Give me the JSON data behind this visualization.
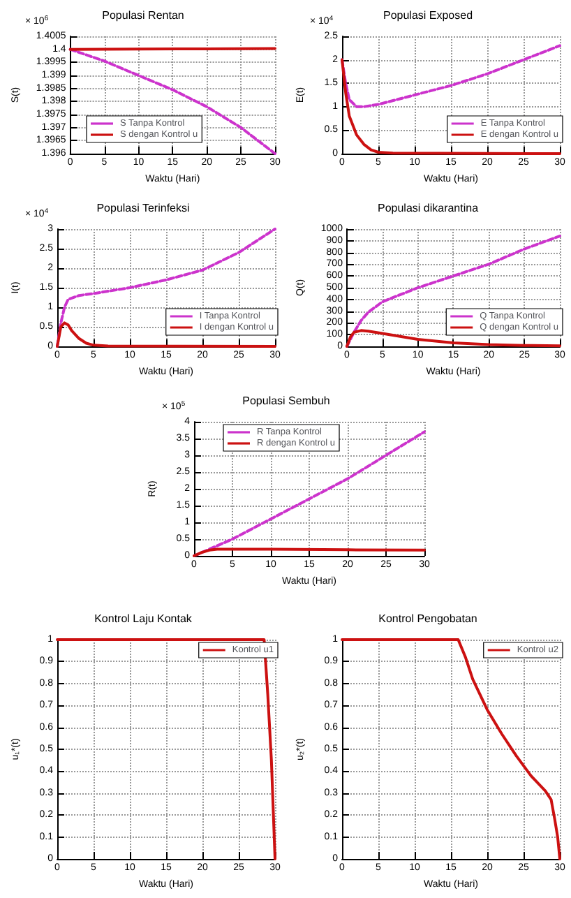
{
  "chart_data": [
    {
      "type": "line",
      "title": "Populasi Rentan",
      "xlabel": "Waktu (Hari)",
      "ylabel": "S(t)",
      "annotations": [
        "× 10$^{6}$"
      ],
      "xlim": [
        0,
        30
      ],
      "xticks": [
        0,
        5,
        10,
        15,
        20,
        25,
        30
      ],
      "ylim": [
        1.396,
        1.4005
      ],
      "yticks": [
        1.396,
        1.3965,
        1.397,
        1.3975,
        1.398,
        1.3985,
        1.399,
        1.3995,
        1.4,
        1.4005
      ],
      "grid": true,
      "legend": "bottom left",
      "marker": "none",
      "series": [
        {
          "name": "S Tanpa Kontrol",
          "color": "#cc33cc",
          "line_style": "dashed",
          "x": [
            0,
            5,
            10,
            15,
            20,
            25,
            30
          ],
          "values": [
            1.4,
            1.39955,
            1.399,
            1.39845,
            1.3978,
            1.397,
            1.396
          ]
        },
        {
          "name": "S dengan Kontrol u",
          "color": "#cc1111",
          "line_style": "solid",
          "x": [
            0,
            10,
            20,
            30
          ],
          "values": [
            1.4,
            1.40001,
            1.40002,
            1.40003
          ]
        }
      ]
    },
    {
      "type": "line",
      "title": "Populasi Exposed",
      "xlabel": "Waktu (Hari)",
      "ylabel": "E(t)",
      "annotations": [
        "× 10$^{4}$"
      ],
      "xlim": [
        0,
        30
      ],
      "xticks": [
        0,
        5,
        10,
        15,
        20,
        25,
        30
      ],
      "ylim": [
        0,
        2.5
      ],
      "yticks": [
        0,
        0.5,
        1,
        1.5,
        2,
        2.5
      ],
      "grid": true,
      "legend": "bottom right",
      "marker": "none",
      "series": [
        {
          "name": "E Tanpa Kontrol",
          "color": "#cc33cc",
          "line_style": "dashed",
          "x": [
            0,
            0.5,
            1,
            2,
            3,
            5,
            10,
            15,
            20,
            25,
            30
          ],
          "values": [
            2.0,
            1.5,
            1.15,
            1.0,
            1.0,
            1.05,
            1.25,
            1.45,
            1.7,
            2.0,
            2.3
          ]
        },
        {
          "name": "E dengan Kontrol u",
          "color": "#cc1111",
          "line_style": "solid",
          "x": [
            0,
            0.5,
            1,
            2,
            3,
            4,
            5,
            7,
            30
          ],
          "values": [
            2.0,
            1.3,
            0.8,
            0.4,
            0.2,
            0.08,
            0.03,
            0.01,
            0
          ]
        }
      ]
    },
    {
      "type": "line",
      "title": "Populasi Terinfeksi",
      "xlabel": "Waktu (Hari)",
      "ylabel": "I(t)",
      "annotations": [
        "× 10$^{4}$"
      ],
      "xlim": [
        0,
        30
      ],
      "xticks": [
        0,
        5,
        10,
        15,
        20,
        25,
        30
      ],
      "ylim": [
        0,
        3
      ],
      "yticks": [
        0,
        0.5,
        1,
        1.5,
        2,
        2.5,
        3
      ],
      "grid": true,
      "legend": "bottom right",
      "marker": "none",
      "series": [
        {
          "name": "I Tanpa Kontrol",
          "color": "#cc33cc",
          "line_style": "dashed",
          "x": [
            0,
            0.5,
            1,
            1.5,
            3,
            5,
            10,
            15,
            20,
            25,
            30
          ],
          "values": [
            0,
            0.6,
            1.0,
            1.2,
            1.3,
            1.35,
            1.5,
            1.7,
            1.95,
            2.4,
            3.0
          ]
        },
        {
          "name": "I dengan Kontrol u",
          "color": "#cc1111",
          "line_style": "solid",
          "x": [
            0,
            0.5,
            1,
            1.5,
            2,
            3,
            4,
            5,
            7,
            30
          ],
          "values": [
            0,
            0.5,
            0.6,
            0.55,
            0.4,
            0.2,
            0.08,
            0.03,
            0.01,
            0
          ]
        }
      ]
    },
    {
      "type": "line",
      "title": "Populasi dikarantina",
      "xlabel": "Waktu (Hari)",
      "ylabel": "Q(t)",
      "xlim": [
        0,
        30
      ],
      "xticks": [
        0,
        5,
        10,
        15,
        20,
        25,
        30
      ],
      "ylim": [
        0,
        1000
      ],
      "yticks": [
        0,
        100,
        200,
        300,
        400,
        500,
        600,
        700,
        800,
        900,
        1000
      ],
      "grid": true,
      "legend": "bottom right",
      "marker": "none",
      "series": [
        {
          "name": "Q Tanpa Kontrol",
          "color": "#cc33cc",
          "line_style": "dashed",
          "x": [
            0,
            1,
            2,
            3,
            5,
            10,
            15,
            20,
            25,
            30
          ],
          "values": [
            0,
            120,
            220,
            290,
            380,
            500,
            600,
            700,
            830,
            940
          ]
        },
        {
          "name": "Q dengan Kontrol u",
          "color": "#cc1111",
          "line_style": "solid",
          "x": [
            0,
            0.5,
            1,
            2,
            3,
            5,
            10,
            15,
            20,
            25,
            30
          ],
          "values": [
            0,
            80,
            120,
            135,
            130,
            110,
            60,
            30,
            15,
            8,
            5
          ]
        }
      ]
    },
    {
      "type": "line",
      "title": "Populasi Sembuh",
      "xlabel": "Waktu (Hari)",
      "ylabel": "R(t)",
      "annotations": [
        "× 10$^{5}$"
      ],
      "xlim": [
        0,
        30
      ],
      "xticks": [
        0,
        5,
        10,
        15,
        20,
        25,
        30
      ],
      "ylim": [
        0,
        4
      ],
      "yticks": [
        0,
        0.5,
        1,
        1.5,
        2,
        2.5,
        3,
        3.5,
        4
      ],
      "grid": true,
      "legend": "top left",
      "marker": "none",
      "series": [
        {
          "name": "R Tanpa Kontrol",
          "color": "#cc33cc",
          "line_style": "dashed",
          "x": [
            0,
            5,
            10,
            15,
            20,
            25,
            30
          ],
          "values": [
            0,
            0.5,
            1.1,
            1.7,
            2.3,
            3.0,
            3.7
          ]
        },
        {
          "name": "R dengan Kontrol u",
          "color": "#cc1111",
          "line_style": "solid",
          "x": [
            0,
            1,
            2,
            3,
            10,
            20,
            30
          ],
          "values": [
            0,
            0.1,
            0.17,
            0.2,
            0.2,
            0.18,
            0.17
          ]
        }
      ]
    },
    {
      "type": "line",
      "title": "Kontrol Laju Kontak",
      "xlabel": "Waktu (Hari)",
      "ylabel": "u₁*(t)",
      "xlim": [
        0,
        30
      ],
      "xticks": [
        0,
        5,
        10,
        15,
        20,
        25,
        30
      ],
      "ylim": [
        0,
        1
      ],
      "yticks": [
        0,
        0.1,
        0.2,
        0.3,
        0.4,
        0.5,
        0.6,
        0.7,
        0.8,
        0.9,
        1
      ],
      "grid": true,
      "legend": "top right",
      "marker": "none",
      "series": [
        {
          "name": "Kontrol u1",
          "color": "#cc1111",
          "line_style": "solid",
          "x": [
            0,
            28.5,
            29,
            29.5,
            30
          ],
          "values": [
            1,
            1,
            0.75,
            0.45,
            0
          ]
        }
      ]
    },
    {
      "type": "line",
      "title": "Kontrol Pengobatan",
      "xlabel": "Waktu (Hari)",
      "ylabel": "u₂*(t)",
      "xlim": [
        0,
        30
      ],
      "xticks": [
        0,
        5,
        10,
        15,
        20,
        25,
        30
      ],
      "ylim": [
        0,
        1
      ],
      "yticks": [
        0,
        0.1,
        0.2,
        0.3,
        0.4,
        0.5,
        0.6,
        0.7,
        0.8,
        0.9,
        1
      ],
      "grid": true,
      "legend": "top right",
      "marker": "none",
      "series": [
        {
          "name": "Kontrol u2",
          "color": "#cc1111",
          "line_style": "solid",
          "x": [
            0,
            16,
            17,
            18,
            20,
            22,
            24,
            26,
            28,
            28.8,
            29.3,
            29.7,
            30
          ],
          "values": [
            1,
            1,
            0.92,
            0.82,
            0.68,
            0.57,
            0.47,
            0.38,
            0.31,
            0.27,
            0.18,
            0.1,
            0
          ]
        }
      ]
    }
  ]
}
